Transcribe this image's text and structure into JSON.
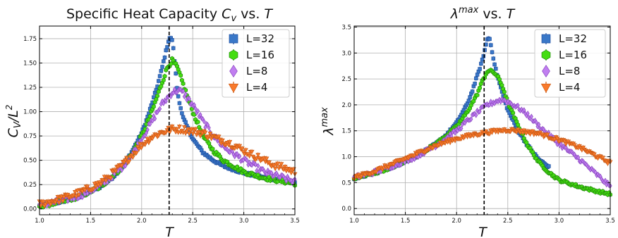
{
  "colors": {
    "L32": "#3a78c8",
    "L32_edge": "#1f4fa0",
    "L16": "#44dd11",
    "L16_edge": "#228a0a",
    "L8": "#c07ef0",
    "L8_edge": "#8a46c0",
    "L4": "#f97a2c",
    "L4_edge": "#cc5a14"
  },
  "marker_icons": {
    "L32": "square-marker-icon",
    "L16": "hexagon-marker-icon",
    "L8": "diamond-marker-icon",
    "L4": "triangle-down-marker-icon"
  },
  "chart_data": [
    {
      "type": "scatter",
      "title_parts": [
        "Specific Heat Capacity ",
        "C",
        "v",
        " vs. ",
        "T"
      ],
      "xlabel": "T",
      "ylabel_parts": [
        "C",
        "V",
        "/",
        "L",
        "2"
      ],
      "xlim": [
        1.0,
        3.5
      ],
      "ylim": [
        -0.06,
        1.88
      ],
      "xticks": [
        1.0,
        1.5,
        2.0,
        2.5,
        3.0,
        3.5
      ],
      "xtick_labels": [
        "1.0",
        "1.5",
        "2.0",
        "2.5",
        "3.0",
        "3.5"
      ],
      "yticks": [
        0.0,
        0.25,
        0.5,
        0.75,
        1.0,
        1.25,
        1.5,
        1.75
      ],
      "ytick_labels": [
        "0.00",
        "0.25",
        "0.50",
        "0.75",
        "1.00",
        "1.25",
        "1.50",
        "1.75"
      ],
      "grid": true,
      "legend_position": "top-right",
      "vertical_line": {
        "x": 2.269,
        "style": "dashed"
      },
      "series": [
        {
          "name": "L=32",
          "key": "L32",
          "marker": "square",
          "points": [
            [
              1.0,
              0.03
            ],
            [
              1.2,
              0.07
            ],
            [
              1.4,
              0.13
            ],
            [
              1.6,
              0.23
            ],
            [
              1.7,
              0.31
            ],
            [
              1.8,
              0.42
            ],
            [
              1.9,
              0.58
            ],
            [
              2.0,
              0.78
            ],
            [
              2.05,
              0.92
            ],
            [
              2.1,
              1.08
            ],
            [
              2.15,
              1.25
            ],
            [
              2.2,
              1.45
            ],
            [
              2.24,
              1.63
            ],
            [
              2.27,
              1.76
            ],
            [
              2.3,
              1.74
            ],
            [
              2.32,
              1.55
            ],
            [
              2.35,
              1.2
            ],
            [
              2.4,
              0.95
            ],
            [
              2.5,
              0.72
            ],
            [
              2.6,
              0.58
            ],
            [
              2.7,
              0.5
            ],
            [
              2.8,
              0.44
            ],
            [
              3.0,
              0.37
            ],
            [
              3.2,
              0.32
            ],
            [
              3.5,
              0.27
            ]
          ]
        },
        {
          "name": "L=16",
          "key": "L16",
          "marker": "hexagon",
          "points": [
            [
              1.0,
              0.03
            ],
            [
              1.2,
              0.07
            ],
            [
              1.4,
              0.13
            ],
            [
              1.6,
              0.23
            ],
            [
              1.8,
              0.42
            ],
            [
              1.9,
              0.56
            ],
            [
              2.0,
              0.75
            ],
            [
              2.1,
              1.0
            ],
            [
              2.15,
              1.15
            ],
            [
              2.2,
              1.3
            ],
            [
              2.25,
              1.45
            ],
            [
              2.3,
              1.53
            ],
            [
              2.35,
              1.45
            ],
            [
              2.4,
              1.3
            ],
            [
              2.45,
              1.15
            ],
            [
              2.5,
              1.0
            ],
            [
              2.6,
              0.75
            ],
            [
              2.7,
              0.6
            ],
            [
              2.8,
              0.5
            ],
            [
              3.0,
              0.38
            ],
            [
              3.2,
              0.32
            ],
            [
              3.5,
              0.26
            ]
          ]
        },
        {
          "name": "L=8",
          "key": "L8",
          "marker": "diamond",
          "points": [
            [
              1.0,
              0.04
            ],
            [
              1.2,
              0.08
            ],
            [
              1.4,
              0.14
            ],
            [
              1.6,
              0.24
            ],
            [
              1.8,
              0.42
            ],
            [
              1.9,
              0.55
            ],
            [
              2.0,
              0.72
            ],
            [
              2.1,
              0.9
            ],
            [
              2.2,
              1.08
            ],
            [
              2.3,
              1.2
            ],
            [
              2.35,
              1.22
            ],
            [
              2.4,
              1.2
            ],
            [
              2.5,
              1.07
            ],
            [
              2.6,
              0.9
            ],
            [
              2.7,
              0.76
            ],
            [
              2.8,
              0.64
            ],
            [
              3.0,
              0.5
            ],
            [
              3.2,
              0.38
            ],
            [
              3.5,
              0.28
            ]
          ]
        },
        {
          "name": "L=4",
          "key": "L4",
          "marker": "triangle_down",
          "points": [
            [
              1.0,
              0.05
            ],
            [
              1.2,
              0.1
            ],
            [
              1.4,
              0.17
            ],
            [
              1.6,
              0.27
            ],
            [
              1.8,
              0.44
            ],
            [
              1.9,
              0.55
            ],
            [
              2.0,
              0.66
            ],
            [
              2.1,
              0.74
            ],
            [
              2.2,
              0.79
            ],
            [
              2.3,
              0.82
            ],
            [
              2.4,
              0.82
            ],
            [
              2.5,
              0.8
            ],
            [
              2.6,
              0.78
            ],
            [
              2.7,
              0.74
            ],
            [
              2.8,
              0.7
            ],
            [
              2.9,
              0.66
            ],
            [
              3.0,
              0.6
            ],
            [
              3.1,
              0.55
            ],
            [
              3.2,
              0.5
            ],
            [
              3.3,
              0.45
            ],
            [
              3.4,
              0.42
            ],
            [
              3.5,
              0.38
            ]
          ]
        }
      ]
    },
    {
      "type": "scatter",
      "title_parts": [
        "λ",
        "max",
        " vs. ",
        "T"
      ],
      "xlabel": "T",
      "ylabel_parts": [
        "λ",
        "max"
      ],
      "xlim": [
        1.0,
        3.5
      ],
      "ylim": [
        -0.12,
        3.52
      ],
      "xticks": [
        1.0,
        1.5,
        2.0,
        2.5,
        3.0,
        3.5
      ],
      "xtick_labels": [
        "1.0",
        "1.5",
        "2.0",
        "2.5",
        "3.0",
        "3.5"
      ],
      "yticks": [
        0.0,
        0.5,
        1.0,
        1.5,
        2.0,
        2.5,
        3.0,
        3.5
      ],
      "ytick_labels": [
        "0.0",
        "0.5",
        "1.0",
        "1.5",
        "2.0",
        "2.5",
        "3.0",
        "3.5"
      ],
      "grid": true,
      "legend_position": "top-right",
      "vertical_line": {
        "x": 2.269,
        "style": "dashed"
      },
      "series": [
        {
          "name": "L=32",
          "key": "L32",
          "marker": "square",
          "points": [
            [
              1.0,
              0.58
            ],
            [
              1.2,
              0.68
            ],
            [
              1.4,
              0.82
            ],
            [
              1.6,
              1.0
            ],
            [
              1.8,
              1.25
            ],
            [
              1.9,
              1.42
            ],
            [
              2.0,
              1.65
            ],
            [
              2.1,
              2.0
            ],
            [
              2.15,
              2.25
            ],
            [
              2.2,
              2.55
            ],
            [
              2.25,
              2.85
            ],
            [
              2.28,
              3.1
            ],
            [
              2.3,
              3.27
            ],
            [
              2.32,
              3.3
            ],
            [
              2.35,
              3.0
            ],
            [
              2.38,
              2.7
            ],
            [
              2.4,
              2.55
            ],
            [
              2.45,
              2.2
            ],
            [
              2.5,
              1.9
            ],
            [
              2.6,
              1.5
            ],
            [
              2.7,
              1.2
            ],
            [
              2.8,
              0.95
            ],
            [
              2.9,
              0.8
            ]
          ]
        },
        {
          "name": "L=16",
          "key": "L16",
          "marker": "hexagon",
          "points": [
            [
              1.0,
              0.58
            ],
            [
              1.2,
              0.68
            ],
            [
              1.4,
              0.82
            ],
            [
              1.6,
              1.0
            ],
            [
              1.8,
              1.25
            ],
            [
              2.0,
              1.58
            ],
            [
              2.1,
              1.85
            ],
            [
              2.2,
              2.2
            ],
            [
              2.25,
              2.45
            ],
            [
              2.3,
              2.65
            ],
            [
              2.35,
              2.65
            ],
            [
              2.4,
              2.55
            ],
            [
              2.45,
              2.35
            ],
            [
              2.5,
              2.05
            ],
            [
              2.6,
              1.6
            ],
            [
              2.7,
              1.2
            ],
            [
              2.8,
              0.9
            ],
            [
              2.9,
              0.7
            ],
            [
              3.0,
              0.55
            ],
            [
              3.2,
              0.42
            ],
            [
              3.4,
              0.32
            ],
            [
              3.5,
              0.28
            ]
          ]
        },
        {
          "name": "L=8",
          "key": "L8",
          "marker": "diamond",
          "points": [
            [
              1.0,
              0.6
            ],
            [
              1.2,
              0.7
            ],
            [
              1.4,
              0.84
            ],
            [
              1.6,
              1.0
            ],
            [
              1.8,
              1.22
            ],
            [
              2.0,
              1.5
            ],
            [
              2.1,
              1.68
            ],
            [
              2.2,
              1.85
            ],
            [
              2.3,
              2.0
            ],
            [
              2.4,
              2.08
            ],
            [
              2.45,
              2.1
            ],
            [
              2.5,
              2.06
            ],
            [
              2.6,
              1.95
            ],
            [
              2.7,
              1.8
            ],
            [
              2.8,
              1.6
            ],
            [
              3.0,
              1.25
            ],
            [
              3.2,
              0.95
            ],
            [
              3.4,
              0.6
            ],
            [
              3.5,
              0.42
            ]
          ]
        },
        {
          "name": "L=4",
          "key": "L4",
          "marker": "triangle_down",
          "points": [
            [
              1.0,
              0.6
            ],
            [
              1.2,
              0.72
            ],
            [
              1.4,
              0.88
            ],
            [
              1.6,
              1.05
            ],
            [
              1.8,
              1.22
            ],
            [
              2.0,
              1.35
            ],
            [
              2.2,
              1.44
            ],
            [
              2.4,
              1.5
            ],
            [
              2.5,
              1.52
            ],
            [
              2.6,
              1.5
            ],
            [
              2.8,
              1.45
            ],
            [
              3.0,
              1.33
            ],
            [
              3.2,
              1.18
            ],
            [
              3.4,
              0.98
            ],
            [
              3.5,
              0.88
            ]
          ]
        }
      ]
    }
  ]
}
